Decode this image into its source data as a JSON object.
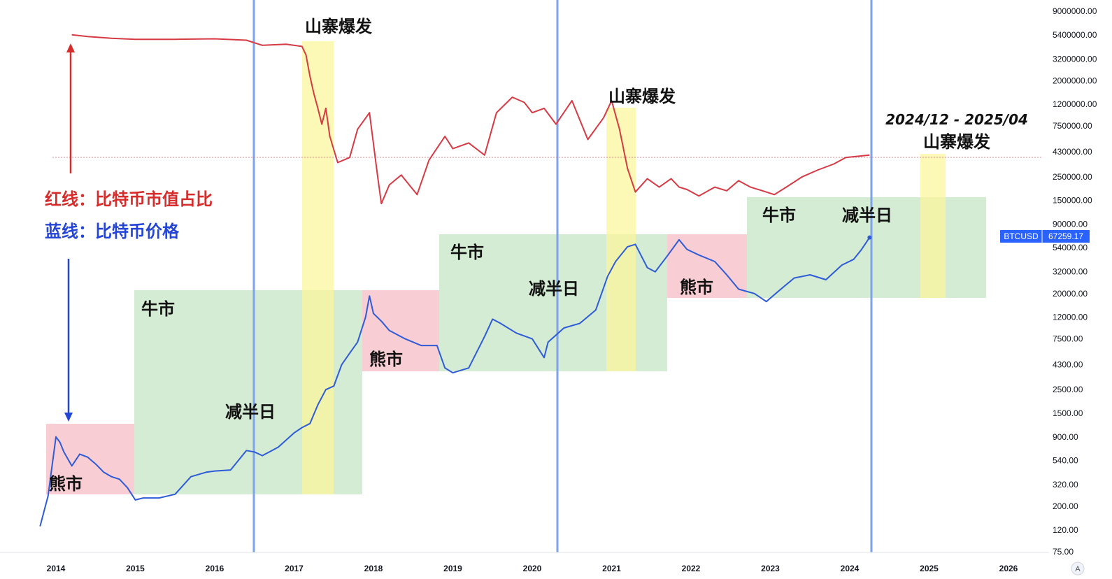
{
  "chart_data": {
    "type": "line",
    "title": "",
    "xlabel": "",
    "ylabel": "",
    "scale": "log",
    "x_ticks": [
      "2014",
      "2015",
      "2016",
      "2017",
      "2018",
      "2019",
      "2020",
      "2021",
      "2022",
      "2023",
      "2024",
      "2025",
      "2026"
    ],
    "y_ticks": [
      "9000000.00",
      "5400000.00",
      "3200000.00",
      "2000000.00",
      "1200000.00",
      "750000.00",
      "430000.00",
      "250000.00",
      "150000.00",
      "90000.00",
      "54000.00",
      "32000.00",
      "20000.00",
      "12000.00",
      "7500.00",
      "4300.00",
      "2500.00",
      "1500.00",
      "900.00",
      "540.00",
      "320.00",
      "200.00",
      "120.00",
      "75.00"
    ],
    "price_tag": {
      "symbol": "BTCUSD",
      "value": "67259.17",
      "color": "#2962ff"
    },
    "series": [
      {
        "color": "#2e5bd8",
        "x": [
          2013.8,
          2013.9,
          2014.0,
          2014.05,
          2014.1,
          2014.2,
          2014.3,
          2014.4,
          2014.5,
          2014.6,
          2014.7,
          2014.8,
          2014.9,
          2015.0,
          2015.1,
          2015.3,
          2015.5,
          2015.7,
          2015.9,
          2016.0,
          2016.2,
          2016.4,
          2016.5,
          2016.6,
          2016.8,
          2017.0,
          2017.1,
          2017.2,
          2017.3,
          2017.4,
          2017.5,
          2017.6,
          2017.7,
          2017.8,
          2017.9,
          2017.95,
          2018.0,
          2018.1,
          2018.2,
          2018.4,
          2018.6,
          2018.8,
          2018.9,
          2019.0,
          2019.2,
          2019.4,
          2019.5,
          2019.6,
          2019.8,
          2020.0,
          2020.15,
          2020.2,
          2020.4,
          2020.6,
          2020.8,
          2020.95,
          2021.05,
          2021.2,
          2021.3,
          2021.45,
          2021.55,
          2021.7,
          2021.85,
          2021.95,
          2022.1,
          2022.3,
          2022.45,
          2022.6,
          2022.8,
          2022.95,
          2023.1,
          2023.3,
          2023.5,
          2023.7,
          2023.9,
          2024.05,
          2024.15,
          2024.25
        ],
        "y": [
          130,
          250,
          900,
          800,
          650,
          480,
          620,
          580,
          500,
          420,
          380,
          360,
          300,
          230,
          240,
          240,
          260,
          380,
          420,
          430,
          440,
          670,
          650,
          600,
          720,
          980,
          1100,
          1200,
          1800,
          2500,
          2700,
          4300,
          5500,
          7000,
          12000,
          19000,
          13000,
          11000,
          9000,
          7500,
          6500,
          6500,
          4000,
          3600,
          4000,
          7900,
          11500,
          10500,
          8500,
          7500,
          5000,
          7000,
          9500,
          10500,
          14000,
          29000,
          40000,
          55000,
          58000,
          35000,
          32000,
          45000,
          64000,
          52000,
          46000,
          40000,
          30000,
          22000,
          20000,
          16800,
          21000,
          28000,
          30000,
          27000,
          37000,
          42000,
          52000,
          67259
        ]
      },
      {
        "color": "#d63a44",
        "x": [
          2014.2,
          2014.4,
          2014.7,
          2015.0,
          2015.5,
          2016.0,
          2016.4,
          2016.6,
          2016.9,
          2017.1,
          2017.15,
          2017.2,
          2017.25,
          2017.3,
          2017.35,
          2017.4,
          2017.45,
          2017.5,
          2017.55,
          2017.7,
          2017.8,
          2017.95,
          2018.05,
          2018.1,
          2018.2,
          2018.35,
          2018.55,
          2018.7,
          2018.9,
          2019.0,
          2019.2,
          2019.4,
          2019.55,
          2019.75,
          2019.9,
          2020.0,
          2020.15,
          2020.3,
          2020.5,
          2020.7,
          2020.9,
          2021.0,
          2021.1,
          2021.2,
          2021.3,
          2021.45,
          2021.6,
          2021.75,
          2021.85,
          2021.95,
          2022.1,
          2022.3,
          2022.45,
          2022.6,
          2022.75,
          2022.9,
          2023.05,
          2023.2,
          2023.4,
          2023.6,
          2023.8,
          2023.95,
          2024.1,
          2024.25
        ],
        "y": [
          5400000,
          5200000,
          5000000,
          4900000,
          4900000,
          4950000,
          4800000,
          4300000,
          4400000,
          4200000,
          3500000,
          2200000,
          1500000,
          1100000,
          780000,
          1100000,
          600000,
          450000,
          340000,
          380000,
          700000,
          1000000,
          260000,
          140000,
          210000,
          260000,
          170000,
          360000,
          600000,
          460000,
          520000,
          400000,
          1000000,
          1400000,
          1250000,
          1000000,
          1100000,
          780000,
          1300000,
          560000,
          900000,
          1300000,
          700000,
          300000,
          180000,
          240000,
          200000,
          240000,
          200000,
          190000,
          165000,
          200000,
          185000,
          230000,
          200000,
          185000,
          170000,
          200000,
          250000,
          290000,
          330000,
          380000,
          390000,
          400000
        ]
      }
    ],
    "annotations": {
      "red_label": "红线：比特币市值占比",
      "blue_label": "蓝线：比特币价格",
      "alt1": "山寨爆发",
      "alt2": "山寨爆发",
      "alt3": "山寨爆发",
      "alt3_range": "2024/12 - 2025/04",
      "bear1": "熊市",
      "bear2": "熊市",
      "bear3": "熊市",
      "bull1": "牛市",
      "bull2": "牛市",
      "bull3": "牛市",
      "halving1": "减半日",
      "halving2": "减半日",
      "halving3": "减半日"
    },
    "corner_button": "A"
  }
}
